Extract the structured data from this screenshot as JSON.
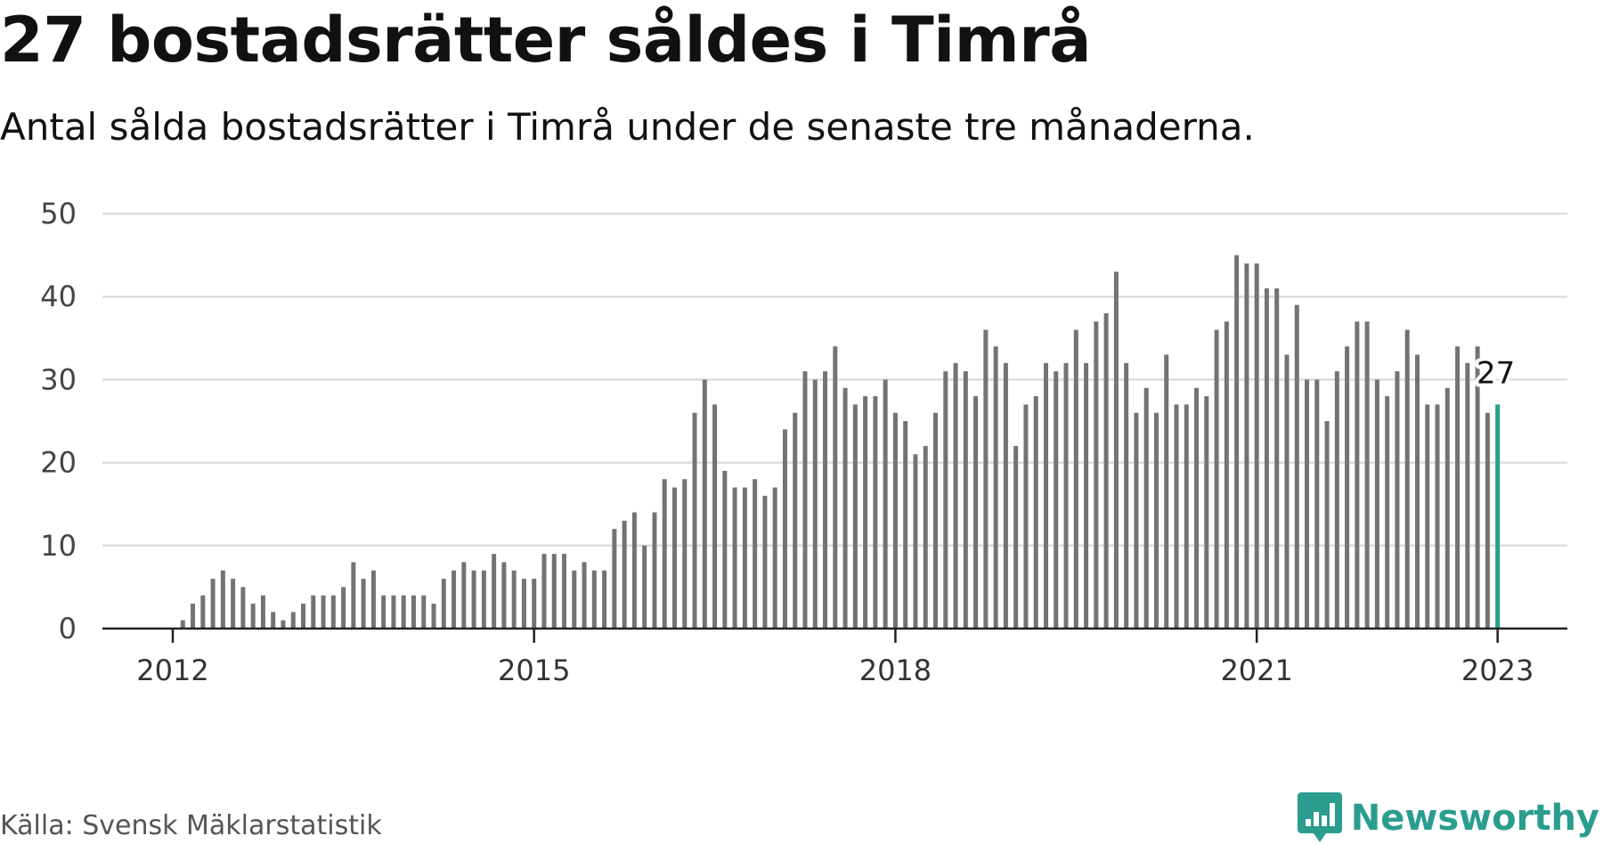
{
  "title": "27 bostadsrätter såldes i Timrå",
  "subtitle": "Antal sålda bostadsrätter i Timrå under de senaste tre månaderna.",
  "source": "Källa: Svensk Mäklarstatistik",
  "brand": "Newsworthy",
  "colors": {
    "bar": "#737373",
    "highlight": "#2a9d8f",
    "grid": "#dddddd",
    "axis": "#222222"
  },
  "chart_data": {
    "type": "bar",
    "start": "2012-01",
    "ylim": [
      0,
      50
    ],
    "yticks": [
      0,
      10,
      20,
      30,
      40,
      50
    ],
    "xticks": [
      "2012",
      "2015",
      "2018",
      "2021",
      "2023"
    ],
    "grid": true,
    "highlight_label": "27",
    "values": [
      0,
      1,
      3,
      4,
      6,
      7,
      6,
      5,
      3,
      4,
      2,
      1,
      2,
      3,
      4,
      4,
      4,
      5,
      8,
      6,
      7,
      4,
      4,
      4,
      4,
      4,
      3,
      6,
      7,
      8,
      7,
      7,
      9,
      8,
      7,
      6,
      6,
      9,
      9,
      9,
      7,
      8,
      7,
      7,
      12,
      13,
      14,
      10,
      14,
      18,
      17,
      18,
      26,
      30,
      27,
      19,
      17,
      17,
      18,
      16,
      17,
      24,
      26,
      31,
      30,
      31,
      34,
      29,
      27,
      28,
      28,
      30,
      26,
      25,
      21,
      22,
      26,
      31,
      32,
      31,
      28,
      36,
      34,
      32,
      22,
      27,
      28,
      32,
      31,
      32,
      36,
      32,
      37,
      38,
      43,
      32,
      26,
      29,
      26,
      33,
      27,
      27,
      29,
      28,
      36,
      37,
      45,
      44,
      44,
      41,
      41,
      33,
      39,
      30,
      30,
      25,
      31,
      34,
      37,
      37,
      30,
      28,
      31,
      36,
      33,
      27,
      27,
      29,
      34,
      32,
      34,
      26,
      27
    ]
  }
}
